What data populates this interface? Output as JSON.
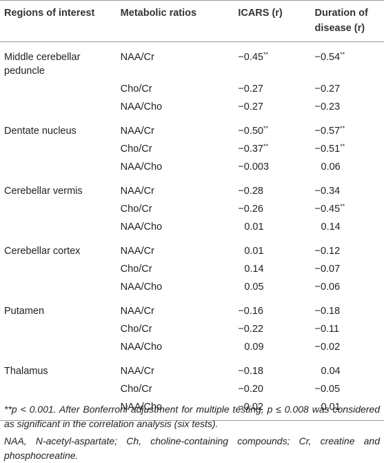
{
  "table": {
    "headers": [
      "Regions of interest",
      "Metabolic ratios",
      "ICARS (r)",
      "Duration of disease (r)"
    ],
    "groups": [
      {
        "region": "Middle cerebellar peduncle",
        "rows": [
          {
            "ratio": "NAA/Cr",
            "icars": {
              "value": "−0.45",
              "note": "**"
            },
            "duration": {
              "value": "−0.54",
              "note": "**"
            }
          },
          {
            "ratio": "Cho/Cr",
            "icars": {
              "value": "−0.27"
            },
            "duration": {
              "value": "−0.27"
            }
          },
          {
            "ratio": "NAA/Cho",
            "icars": {
              "value": "−0.27"
            },
            "duration": {
              "value": "−0.23"
            }
          }
        ]
      },
      {
        "region": "Dentate nucleus",
        "rows": [
          {
            "ratio": "NAA/Cr",
            "icars": {
              "value": "−0.50",
              "note": "**"
            },
            "duration": {
              "value": "−0.57",
              "note": "**"
            }
          },
          {
            "ratio": "Cho/Cr",
            "icars": {
              "value": "−0.37",
              "note": "**"
            },
            "duration": {
              "value": "−0.51",
              "note": "**"
            }
          },
          {
            "ratio": "NAA/Cho",
            "icars": {
              "value": "−0.003"
            },
            "duration": {
              "value": "0.06"
            }
          }
        ]
      },
      {
        "region": "Cerebellar vermis",
        "rows": [
          {
            "ratio": "NAA/Cr",
            "icars": {
              "value": "−0.28"
            },
            "duration": {
              "value": "−0.34"
            }
          },
          {
            "ratio": "Cho/Cr",
            "icars": {
              "value": "−0.26"
            },
            "duration": {
              "value": "−0.45",
              "note": "**"
            }
          },
          {
            "ratio": "NAA/Cho",
            "icars": {
              "value": "0.01"
            },
            "duration": {
              "value": "0.14"
            }
          }
        ]
      },
      {
        "region": "Cerebellar cortex",
        "rows": [
          {
            "ratio": "NAA/Cr",
            "icars": {
              "value": "0.01"
            },
            "duration": {
              "value": "−0.12"
            }
          },
          {
            "ratio": "Cho/Cr",
            "icars": {
              "value": "0.14"
            },
            "duration": {
              "value": "−0.07"
            }
          },
          {
            "ratio": "NAA/Cho",
            "icars": {
              "value": "0.05"
            },
            "duration": {
              "value": "−0.06"
            }
          }
        ]
      },
      {
        "region": "Putamen",
        "rows": [
          {
            "ratio": "NAA/Cr",
            "icars": {
              "value": "−0.16"
            },
            "duration": {
              "value": "−0.18"
            }
          },
          {
            "ratio": "Cho/Cr",
            "icars": {
              "value": "−0.22"
            },
            "duration": {
              "value": "−0.11"
            }
          },
          {
            "ratio": "NAA/Cho",
            "icars": {
              "value": "0.09"
            },
            "duration": {
              "value": "−0.02"
            }
          }
        ]
      },
      {
        "region": "Thalamus",
        "rows": [
          {
            "ratio": "NAA/Cr",
            "icars": {
              "value": "−0.18"
            },
            "duration": {
              "value": "0.04"
            }
          },
          {
            "ratio": "Cho/Cr",
            "icars": {
              "value": "−0.20"
            },
            "duration": {
              "value": "−0.05"
            }
          },
          {
            "ratio": "NAA/Cho",
            "icars": {
              "value": "−0.02"
            },
            "duration": {
              "value": "0.01"
            }
          }
        ]
      }
    ],
    "footnotes": [
      "**p < 0.001. After Bonferroni adjustment for multiple testing, p ≤ 0.008 was considered as significant in the correlation analysis (six tests).",
      "NAA, N-acetyl-aspartate; Ch, choline-containing compounds; Cr, creatine and phosphocreatine."
    ]
  }
}
